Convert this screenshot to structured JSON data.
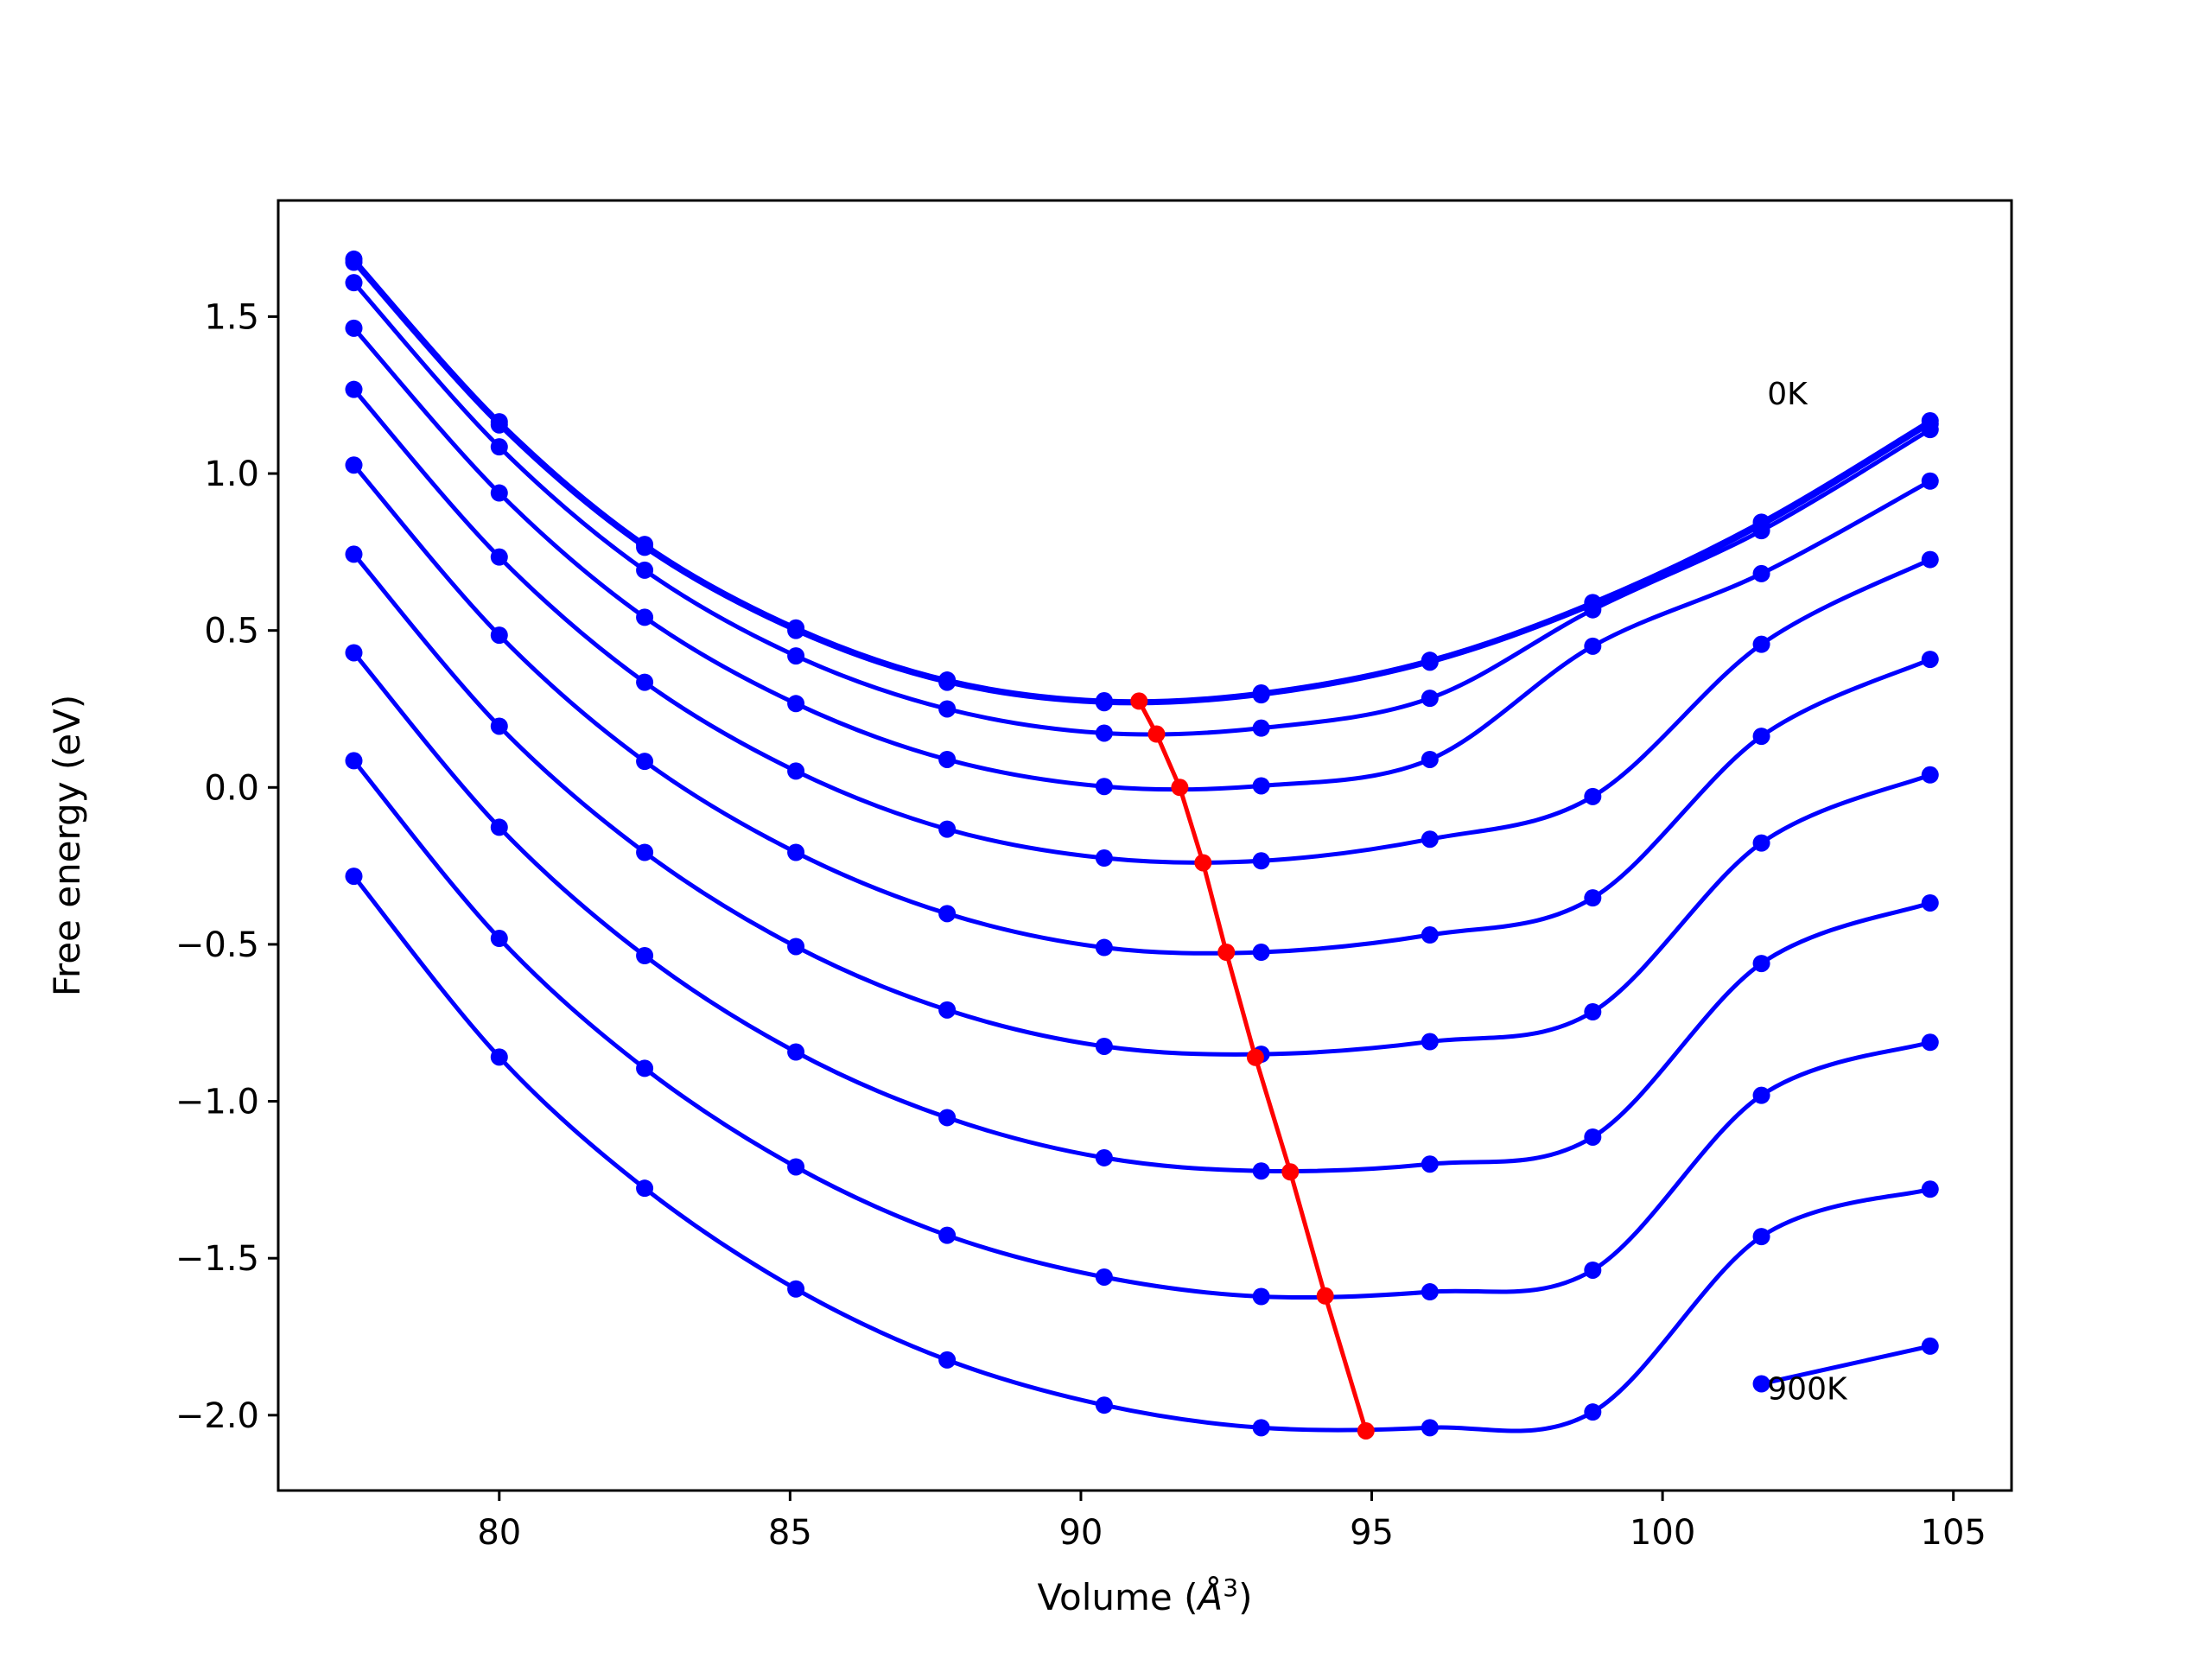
{
  "chart_data": {
    "type": "line",
    "title": "",
    "xlabel": "Volume (",
    "xlabel_symbol": "Å",
    "xlabel_power": "3",
    "xlabel_close": ")",
    "ylabel": "Free energy (eV)",
    "xlim": [
      76.2,
      106.0
    ],
    "ylim": [
      -2.24,
      1.87
    ],
    "xticks": [
      80,
      85,
      90,
      95,
      100,
      105
    ],
    "xtick_labels": [
      "80",
      "85",
      "90",
      "95",
      "100",
      "105"
    ],
    "yticks": [
      -2.0,
      -1.5,
      -1.0,
      -0.5,
      0.0,
      0.5,
      1.0,
      1.5
    ],
    "ytick_labels": [
      "−2.0",
      "−1.5",
      "−1.0",
      "−0.5",
      "0.0",
      "0.5",
      "1.0",
      "1.5"
    ],
    "grid": false,
    "volumes": [
      77.5,
      80.0,
      82.5,
      85.1,
      87.7,
      90.4,
      93.1,
      96.0,
      98.8,
      101.7,
      104.6
    ],
    "series_color": "#0000ff",
    "min_line_color": "#ff0000",
    "series": [
      {
        "values": [
          1.683,
          1.165,
          0.774,
          0.508,
          0.342,
          0.276,
          0.301,
          0.405,
          0.589,
          0.845,
          1.168
        ]
      },
      {
        "values": [
          1.673,
          1.155,
          0.765,
          0.5,
          0.335,
          0.27,
          0.295,
          0.399,
          0.582,
          0.835,
          1.158
        ]
      },
      {
        "values": [
          1.608,
          1.085,
          0.692,
          0.419,
          0.25,
          0.173,
          0.189,
          0.284,
          0.566,
          0.818,
          1.14
        ]
      },
      {
        "values": [
          1.463,
          0.938,
          0.542,
          0.267,
          0.089,
          0.003,
          0.005,
          0.089,
          0.45,
          0.681,
          0.976
        ]
      },
      {
        "values": [
          1.268,
          0.734,
          0.335,
          0.052,
          -0.133,
          -0.225,
          -0.234,
          -0.165,
          -0.029,
          0.456,
          0.726
        ]
      },
      {
        "values": [
          1.027,
          0.485,
          0.083,
          -0.207,
          -0.402,
          -0.51,
          -0.525,
          -0.47,
          -0.352,
          0.163,
          0.408
        ]
      },
      {
        "values": [
          0.743,
          0.195,
          -0.207,
          -0.507,
          -0.709,
          -0.825,
          -0.85,
          -0.81,
          -0.715,
          -0.177,
          0.04
        ]
      },
      {
        "values": [
          0.429,
          -0.127,
          -0.536,
          -0.843,
          -1.052,
          -1.18,
          -1.222,
          -1.2,
          -1.114,
          -0.561,
          -0.368
        ]
      },
      {
        "values": [
          0.085,
          -0.481,
          -0.895,
          -1.209,
          -1.427,
          -1.56,
          -1.622,
          -1.607,
          -1.538,
          -0.981,
          -0.812
        ]
      },
      {
        "values": [
          -0.283,
          -0.859,
          -1.277,
          -1.598,
          -1.824,
          -1.968,
          -2.04,
          -2.04,
          -1.99,
          -1.431,
          -1.28
        ]
      },
      {
        "values": [
          null,
          null,
          null,
          null,
          null,
          null,
          null,
          null,
          null,
          -1.9,
          -1.78
        ]
      }
    ],
    "minima": {
      "x": [
        91.0,
        91.3,
        91.7,
        92.1,
        92.5,
        93.0,
        93.6,
        94.2,
        94.9
      ],
      "y": [
        0.275,
        0.17,
        0.0,
        -0.24,
        -0.525,
        -0.86,
        -1.225,
        -1.62,
        -2.05
      ]
    },
    "annotations": [
      {
        "text": "0K",
        "x": 101.8,
        "y": 1.22
      },
      {
        "text": "900K",
        "x": 101.8,
        "y": -1.95
      }
    ]
  }
}
